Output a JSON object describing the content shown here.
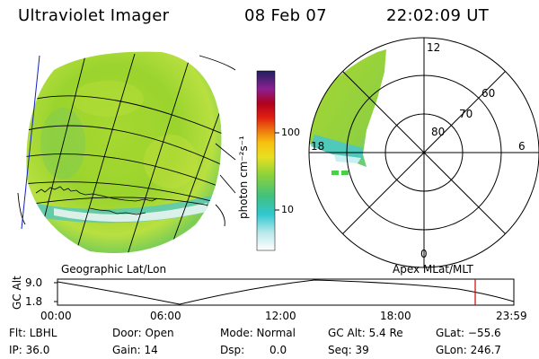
{
  "header": {
    "instrument": "Ultraviolet Imager",
    "date": "08 Feb 07",
    "time": "22:02:09 UT"
  },
  "colorbar": {
    "unit_label": "photon cm⁻²s⁻¹",
    "ticks": [
      "100",
      "10"
    ]
  },
  "polar": {
    "mlt_labels": {
      "top": "12",
      "left": "18",
      "right": "6",
      "bottom": "0"
    },
    "lat_labels": [
      "60",
      "70",
      "80"
    ]
  },
  "panel_labels": {
    "left": "Geographic Lat/Lon",
    "right": "Apex MLat/MLT"
  },
  "altitude_plot": {
    "ylabel": "GC Alt",
    "yticks": [
      "9.0",
      "1.8"
    ],
    "xticks": [
      "00:00",
      "06:00",
      "12:00",
      "18:00",
      "23:59"
    ],
    "marker_color": "#d00000"
  },
  "info": {
    "filter": "Flt: LBHL",
    "door": "Door: Open",
    "mode": "Mode: Normal",
    "gc_alt": "GC Alt: 5.4 Re",
    "glat": "GLat: −55.6",
    "ip": "IP: 36.0",
    "gain": "Gain: 14",
    "dsp_label": "Dsp:",
    "dsp_value": "0.0",
    "seq": "Seq: 39",
    "glon": "GLon: 246.7"
  }
}
